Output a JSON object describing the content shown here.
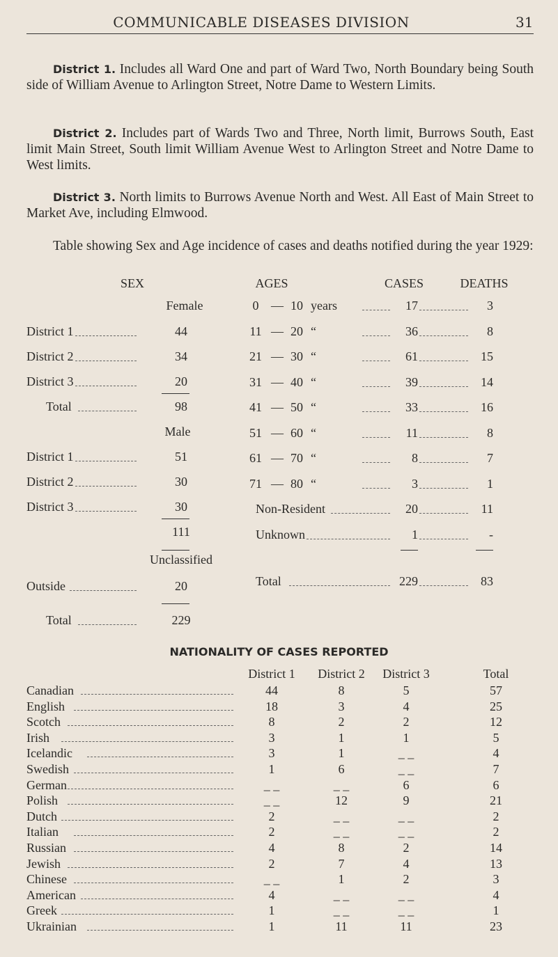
{
  "header": {
    "title": "COMMUNICABLE DISEASES DIVISION",
    "page": "31"
  },
  "paragraphs": [
    {
      "lead": "District 1.",
      "text": " Includes all Ward One and part of Ward Two, North Boundary being South side of William Avenue to Arlington Street, Notre Dame to Western Limits."
    },
    {
      "lead": "District 2.",
      "text": " Includes part of Wards Two and Three, North limit, Burrows South, East limit Main Street, South limit William Avenue West to Arlington Street and Notre Dame to West limits."
    },
    {
      "lead": "District 3.",
      "text": " North limits to Burrows Avenue North and West.  All East of Main Street to Market Ave, including Elmwood."
    },
    {
      "lead": "",
      "text": "Table showing Sex and Age incidence of cases and deaths notified during the year 1929:"
    }
  ],
  "sex_table": {
    "headers": {
      "sex": "SEX",
      "ages": "AGES",
      "cases": "CASES",
      "deaths": "DEATHS"
    },
    "female_label": "Female",
    "male_label": "Male",
    "unclassified_label": "Unclassified",
    "female": [
      {
        "label": "District 1",
        "value": "44"
      },
      {
        "label": "District 2",
        "value": "34"
      },
      {
        "label": "District 3",
        "value": "20"
      },
      {
        "label": "Total",
        "value": "98"
      }
    ],
    "male": [
      {
        "label": "District 1",
        "value": "51"
      },
      {
        "label": "District 2",
        "value": "30"
      },
      {
        "label": "District 3",
        "value": "30"
      }
    ],
    "male_total": "111",
    "outside": {
      "label": "Outside",
      "value": "20"
    },
    "grand_total": {
      "label": "Total",
      "value": "229"
    }
  },
  "age_table": {
    "rows": [
      {
        "from": "0",
        "to": "10",
        "unit": "years",
        "cases": "17",
        "deaths": "3"
      },
      {
        "from": "11",
        "to": "20",
        "unit": "“",
        "cases": "36",
        "deaths": "8"
      },
      {
        "from": "21",
        "to": "30",
        "unit": "“",
        "cases": "61",
        "deaths": "15"
      },
      {
        "from": "31",
        "to": "40",
        "unit": "“",
        "cases": "39",
        "deaths": "14"
      },
      {
        "from": "41",
        "to": "50",
        "unit": "“",
        "cases": "33",
        "deaths": "16"
      },
      {
        "from": "51",
        "to": "60",
        "unit": "“",
        "cases": "11",
        "deaths": "8"
      },
      {
        "from": "61",
        "to": "70",
        "unit": "“",
        "cases": "8",
        "deaths": "7"
      },
      {
        "from": "71",
        "to": "80",
        "unit": "“",
        "cases": "3",
        "deaths": "1"
      }
    ],
    "non_resident": {
      "label": "Non-Resident",
      "cases": "20",
      "deaths": "11"
    },
    "unknown": {
      "label": "Unknown",
      "cases": "1",
      "deaths": "-"
    },
    "total": {
      "label": "Total",
      "cases": "229",
      "deaths": "83"
    }
  },
  "nationality": {
    "title": "NATIONALITY OF CASES REPORTED",
    "columns": [
      "District 1",
      "District 2",
      "District 3",
      "Total"
    ],
    "rows": [
      {
        "name": "Canadian",
        "d1": "44",
        "d2": "8",
        "d3": "5",
        "total": "57"
      },
      {
        "name": "English",
        "d1": "18",
        "d2": "3",
        "d3": "4",
        "total": "25"
      },
      {
        "name": "Scotch",
        "d1": "8",
        "d2": "2",
        "d3": "2",
        "total": "12"
      },
      {
        "name": "Irish",
        "d1": "3",
        "d2": "1",
        "d3": "1",
        "total": "5"
      },
      {
        "name": "Icelandic",
        "d1": "3",
        "d2": "1",
        "d3": "_ _",
        "total": "4"
      },
      {
        "name": "Swedish",
        "d1": "1",
        "d2": "6",
        "d3": "_ _",
        "total": "7"
      },
      {
        "name": "German",
        "d1": "_ _",
        "d2": "_ _",
        "d3": "6",
        "total": "6"
      },
      {
        "name": "Polish",
        "d1": "_ _",
        "d2": "12",
        "d3": "9",
        "total": "21"
      },
      {
        "name": "Dutch",
        "d1": "2",
        "d2": "_ _",
        "d3": "_ _",
        "total": "2"
      },
      {
        "name": "Italian",
        "d1": "2",
        "d2": "_ _",
        "d3": "_ _",
        "total": "2"
      },
      {
        "name": "Russian",
        "d1": "4",
        "d2": "8",
        "d3": "2",
        "total": "14"
      },
      {
        "name": "Jewish",
        "d1": "2",
        "d2": "7",
        "d3": "4",
        "total": "13"
      },
      {
        "name": "Chinese",
        "d1": "_ _",
        "d2": "1",
        "d3": "2",
        "total": "3"
      },
      {
        "name": "American",
        "d1": "4",
        "d2": "_ _",
        "d3": "_ _",
        "total": "4"
      },
      {
        "name": "Greek",
        "d1": "1",
        "d2": "_ _",
        "d3": "_ _",
        "total": "1"
      },
      {
        "name": "Ukrainian",
        "d1": "1",
        "d2": "11",
        "d3": "11",
        "total": "23"
      }
    ]
  }
}
